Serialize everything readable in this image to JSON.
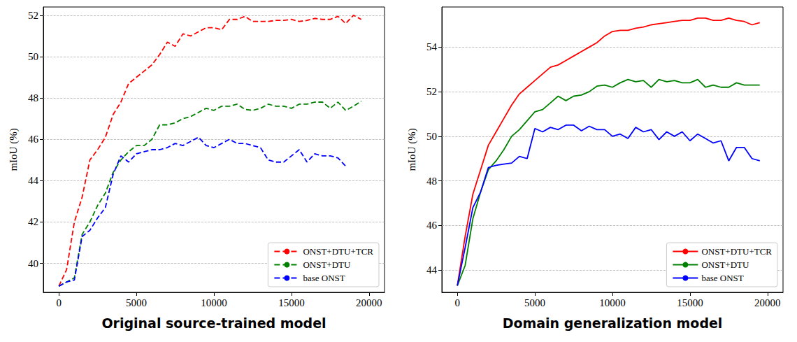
{
  "chart_data": [
    {
      "type": "line",
      "title": "Original source-trained model",
      "ylabel": "mIoU (%)",
      "line_style": "dashed",
      "legend": "lower right",
      "grid": true,
      "xlim": [
        -1000,
        21000
      ],
      "xticks": [
        0,
        5000,
        10000,
        15000,
        20000
      ],
      "ylim": [
        38.6,
        52.4
      ],
      "yticks": [
        40,
        42,
        44,
        46,
        48,
        50,
        52
      ],
      "x": [
        0,
        500,
        1000,
        1500,
        2000,
        2500,
        3000,
        3500,
        4000,
        4500,
        5000,
        5500,
        6000,
        6500,
        7000,
        7500,
        8000,
        8500,
        9000,
        9500,
        10000,
        10500,
        11000,
        11500,
        12000,
        12500,
        13000,
        13500,
        14000,
        14500,
        15000,
        15500,
        16000,
        16500,
        17000,
        17500,
        18000,
        18500,
        19000,
        19500
      ],
      "series": [
        {
          "name": "ONST+DTU+TCR",
          "color": "#ff0000",
          "values": [
            38.9,
            39.7,
            42.0,
            43.2,
            45.0,
            45.5,
            46.1,
            47.2,
            47.8,
            48.7,
            49.0,
            49.3,
            49.6,
            50.1,
            50.7,
            50.5,
            51.1,
            51.0,
            51.2,
            51.4,
            51.4,
            51.3,
            51.8,
            51.8,
            51.95,
            51.7,
            51.7,
            51.7,
            51.75,
            51.75,
            51.8,
            51.7,
            51.75,
            51.85,
            51.8,
            51.8,
            51.95,
            51.6,
            52.0,
            51.8
          ]
        },
        {
          "name": "ONST+DTU",
          "color": "#008000",
          "values": [
            38.9,
            39.1,
            39.3,
            41.4,
            42.0,
            42.8,
            43.4,
            44.4,
            45.0,
            45.4,
            45.7,
            45.7,
            46.0,
            46.7,
            46.7,
            46.8,
            47.0,
            47.1,
            47.3,
            47.5,
            47.4,
            47.6,
            47.6,
            47.7,
            47.45,
            47.4,
            47.5,
            47.7,
            47.6,
            47.6,
            47.5,
            47.7,
            47.7,
            47.8,
            47.8,
            47.5,
            47.8,
            47.4,
            47.6,
            47.85
          ]
        },
        {
          "name": "base ONST",
          "color": "#0000ff",
          "values": [
            38.9,
            39.1,
            39.2,
            41.3,
            41.6,
            42.2,
            42.7,
            44.3,
            45.2,
            44.9,
            45.3,
            45.4,
            45.5,
            45.5,
            45.6,
            45.8,
            45.7,
            45.9,
            46.1,
            45.7,
            45.6,
            45.8,
            46.0,
            45.8,
            45.8,
            45.7,
            45.6,
            45.0,
            44.9,
            44.9,
            45.2,
            45.5,
            44.9,
            45.3,
            45.2,
            45.2,
            45.1,
            44.7,
            null,
            null
          ]
        }
      ]
    },
    {
      "type": "line",
      "title": "Domain generalization model",
      "ylabel": "mIoU (%)",
      "line_style": "solid",
      "legend": "lower right",
      "grid": true,
      "xlim": [
        -1000,
        21000
      ],
      "xticks": [
        0,
        5000,
        10000,
        15000,
        20000
      ],
      "ylim": [
        43.0,
        55.8
      ],
      "yticks": [
        44,
        46,
        48,
        50,
        52,
        54
      ],
      "x": [
        0,
        500,
        1000,
        1500,
        2000,
        2500,
        3000,
        3500,
        4000,
        4500,
        5000,
        5500,
        6000,
        6500,
        7000,
        7500,
        8000,
        8500,
        9000,
        9500,
        10000,
        10500,
        11000,
        11500,
        12000,
        12500,
        13000,
        13500,
        14000,
        14500,
        15000,
        15500,
        16000,
        16500,
        17000,
        17500,
        18000,
        18500,
        19000,
        19500
      ],
      "series": [
        {
          "name": "ONST+DTU+TCR",
          "color": "#ff0000",
          "values": [
            43.3,
            45.5,
            47.4,
            48.5,
            49.6,
            50.2,
            50.8,
            51.4,
            51.9,
            52.2,
            52.5,
            52.8,
            53.1,
            53.2,
            53.4,
            53.6,
            53.8,
            54.0,
            54.2,
            54.5,
            54.7,
            54.75,
            54.75,
            54.85,
            54.9,
            55.0,
            55.05,
            55.1,
            55.15,
            55.2,
            55.2,
            55.3,
            55.3,
            55.2,
            55.2,
            55.3,
            55.2,
            55.15,
            55.0,
            55.1
          ]
        },
        {
          "name": "ONST+DTU",
          "color": "#008000",
          "values": [
            43.3,
            44.2,
            46.3,
            47.5,
            48.5,
            48.9,
            49.4,
            50.0,
            50.3,
            50.7,
            51.1,
            51.2,
            51.5,
            51.8,
            51.6,
            51.8,
            51.85,
            52.0,
            52.25,
            52.3,
            52.2,
            52.4,
            52.55,
            52.45,
            52.5,
            52.2,
            52.55,
            52.45,
            52.5,
            52.4,
            52.4,
            52.55,
            52.2,
            52.3,
            52.2,
            52.2,
            52.4,
            52.3,
            52.3,
            52.3
          ]
        },
        {
          "name": "base ONST",
          "color": "#0000ff",
          "values": [
            43.3,
            45.0,
            46.8,
            47.5,
            48.6,
            48.7,
            48.75,
            48.8,
            49.1,
            49.0,
            50.35,
            50.2,
            50.4,
            50.3,
            50.5,
            50.5,
            50.25,
            50.45,
            50.3,
            50.3,
            50.0,
            50.1,
            49.9,
            50.4,
            50.2,
            50.3,
            49.85,
            50.2,
            50.0,
            50.2,
            49.8,
            50.1,
            49.9,
            49.7,
            49.8,
            48.9,
            49.5,
            49.5,
            49.0,
            48.9
          ]
        }
      ]
    }
  ]
}
